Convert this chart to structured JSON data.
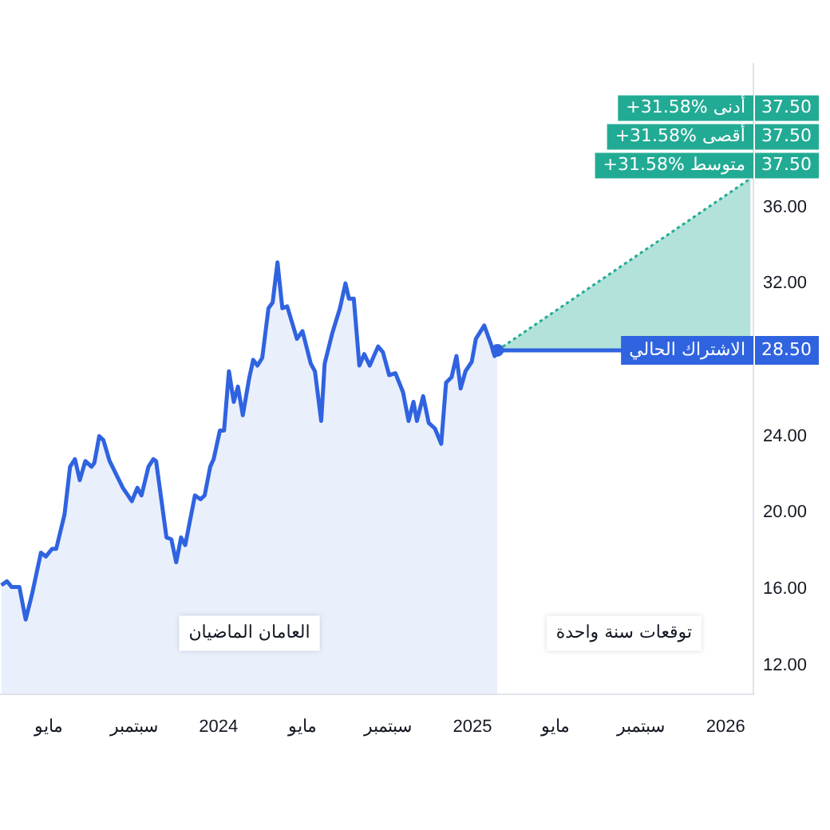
{
  "chart_data": {
    "type": "area",
    "x": [
      "2023-02-22",
      "2023-03-02",
      "2023-03-09",
      "2023-03-20",
      "2023-03-29",
      "2023-04-07",
      "2023-04-20",
      "2023-04-27",
      "2023-05-06",
      "2023-05-12",
      "2023-05-24",
      "2023-06-01",
      "2023-06-08",
      "2023-06-15",
      "2023-06-23",
      "2023-07-02",
      "2023-07-06",
      "2023-07-13",
      "2023-07-19",
      "2023-07-28",
      "2023-08-16",
      "2023-08-29",
      "2023-09-06",
      "2023-09-12",
      "2023-09-22",
      "2023-09-29",
      "2023-10-03",
      "2023-10-18",
      "2023-10-25",
      "2023-11-01",
      "2023-11-08",
      "2023-11-14",
      "2023-11-28",
      "2023-12-06",
      "2023-12-12",
      "2023-12-20",
      "2023-12-25",
      "2024-01-03",
      "2024-01-09",
      "2024-01-16",
      "2024-01-23",
      "2024-01-29",
      "2024-02-05",
      "2024-02-14",
      "2024-02-20",
      "2024-02-26",
      "2024-03-04",
      "2024-03-13",
      "2024-03-19",
      "2024-03-26",
      "2024-04-02",
      "2024-04-09",
      "2024-04-23",
      "2024-05-01",
      "2024-05-13",
      "2024-05-19",
      "2024-05-28",
      "2024-06-02",
      "2024-06-13",
      "2024-06-24",
      "2024-07-02",
      "2024-07-07",
      "2024-07-14",
      "2024-07-22",
      "2024-07-29",
      "2024-08-06",
      "2024-08-18",
      "2024-08-25",
      "2024-09-03",
      "2024-09-12",
      "2024-09-23",
      "2024-10-01",
      "2024-10-08",
      "2024-10-13",
      "2024-10-22",
      "2024-10-30",
      "2024-11-08",
      "2024-11-17",
      "2024-11-24",
      "2024-12-02",
      "2024-12-09",
      "2024-12-15",
      "2024-12-22",
      "2024-12-31",
      "2025-01-06",
      "2025-01-18",
      "2025-01-28",
      "2025-02-02",
      "2025-02-06"
    ],
    "series": [
      {
        "color": "#2f63e0",
        "values": [
          16.2,
          16.4,
          16.1,
          16.1,
          14.4,
          15.7,
          17.9,
          17.7,
          18.1,
          18.1,
          19.9,
          22.4,
          22.8,
          21.7,
          22.7,
          22.4,
          22.6,
          24.0,
          23.8,
          22.7,
          21.3,
          20.6,
          21.3,
          20.9,
          22.4,
          22.8,
          22.7,
          18.7,
          18.6,
          17.4,
          18.7,
          18.3,
          20.9,
          20.7,
          20.9,
          22.4,
          22.8,
          24.3,
          24.3,
          27.4,
          25.8,
          26.6,
          25.1,
          27.0,
          28.0,
          27.7,
          28.1,
          30.7,
          31.0,
          33.1,
          30.7,
          30.8,
          29.1,
          29.5,
          27.8,
          27.4,
          24.8,
          27.8,
          29.4,
          30.7,
          32.0,
          31.2,
          31.2,
          27.7,
          28.3,
          27.7,
          28.7,
          28.4,
          27.2,
          27.3,
          26.3,
          24.8,
          25.8,
          24.8,
          26.1,
          24.7,
          24.4,
          23.6,
          26.8,
          27.1,
          28.2,
          26.5,
          27.4,
          27.9,
          29.1,
          29.8,
          28.8,
          28.2,
          28.5
        ]
      },
      {
        "color": "#22ab94",
        "line_style": "dotted",
        "x": [
          "2025-02-06",
          "2026-02-06"
        ],
        "values": [
          28.5,
          37.5
        ]
      }
    ],
    "xlim": [
      "2023-02-20",
      "2026-02-10"
    ],
    "xticks": [
      {
        "value": "2023-05",
        "label": "مايو"
      },
      {
        "value": "2023-09",
        "label": "سبتمبر"
      },
      "2024",
      {
        "value": "2024-05",
        "label": "مايو"
      },
      {
        "value": "2024-09",
        "label": "سبتمبر"
      },
      "2025",
      {
        "value": "2025-05",
        "label": "مايو"
      },
      {
        "value": "2025-09",
        "label": "سبتمبر"
      },
      "2026"
    ],
    "ylim": [
      10.5,
      43.5
    ],
    "yticks": [
      {
        "value": 12,
        "label": "12.00"
      },
      {
        "value": 16,
        "label": "16.00"
      },
      {
        "value": 20,
        "label": "20.00"
      },
      {
        "value": 24,
        "label": "24.00"
      },
      {
        "value": 32,
        "label": "32.00"
      },
      {
        "value": 36,
        "label": "36.00"
      }
    ],
    "ref_lines": [
      {
        "axis": "y",
        "value": 28.5,
        "label": "الاشتراك الحالي",
        "color": "#2f63e0"
      }
    ],
    "annotations": [
      "+31.58% أدنى",
      "+31.58% أقصى",
      "+31.58% متوسط",
      "37.50",
      "37.50",
      "37.50",
      "28.50",
      "العامان الماضيان",
      "توقعات سنة واحدة"
    ],
    "grid": false,
    "legend": false,
    "marker": "none"
  }
}
